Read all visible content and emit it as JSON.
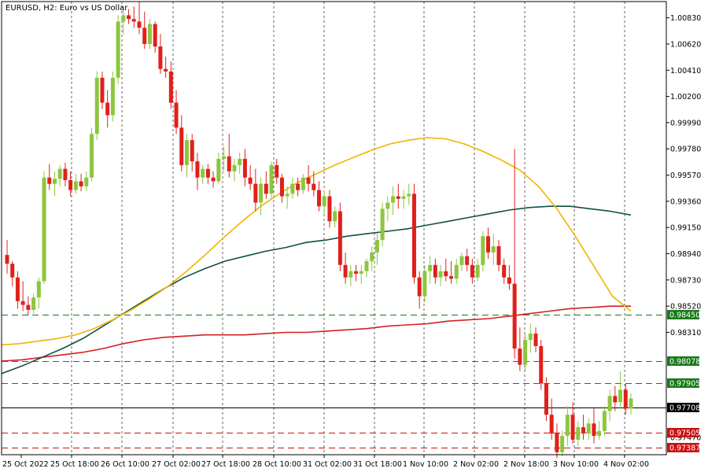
{
  "window": {
    "title": "EURUSD, H2:  Euro vs US Dollar"
  },
  "chart_data": {
    "type": "candlestick",
    "symbol": "EURUSD",
    "timeframe": "H2",
    "description": "Euro vs US Dollar",
    "ylim": [
      0.9733,
      1.0096
    ],
    "grid": "vertical dashed",
    "y_ticks": [
      "1.00830",
      "1.00620",
      "1.00410",
      "1.00200",
      "0.99990",
      "0.99780",
      "0.99570",
      "0.99360",
      "0.99150",
      "0.98940",
      "0.98730",
      "0.98520",
      "0.98310",
      "0.97470"
    ],
    "x_ticks": [
      "25 Oct 2022",
      "25 Oct 18:00",
      "26 Oct 10:00",
      "27 Oct 02:00",
      "27 Oct 18:00",
      "28 Oct 10:00",
      "31 Oct 02:00",
      "31 Oct 18:00",
      "1 Nov 10:00",
      "2 Nov 02:00",
      "2 Nov 18:00",
      "3 Nov 10:00",
      "4 Nov 02:00"
    ],
    "ohlc": [
      [
        0.9893,
        0.9905,
        0.9878,
        0.9886
      ],
      [
        0.9886,
        0.9888,
        0.9868,
        0.9875
      ],
      [
        0.9875,
        0.988,
        0.985,
        0.9856
      ],
      [
        0.9856,
        0.9872,
        0.9848,
        0.9853
      ],
      [
        0.9853,
        0.986,
        0.9845,
        0.9849
      ],
      [
        0.9849,
        0.9862,
        0.9846,
        0.9859
      ],
      [
        0.9859,
        0.9875,
        0.985,
        0.9872
      ],
      [
        0.9872,
        0.996,
        0.987,
        0.9955
      ],
      [
        0.9955,
        0.9966,
        0.9945,
        0.995
      ],
      [
        0.995,
        0.996,
        0.994,
        0.9954
      ],
      [
        0.9954,
        0.9965,
        0.9948,
        0.9962
      ],
      [
        0.9962,
        0.9967,
        0.9948,
        0.9953
      ],
      [
        0.9953,
        0.996,
        0.994,
        0.9945
      ],
      [
        0.9945,
        0.9958,
        0.9942,
        0.9952
      ],
      [
        0.9952,
        0.9958,
        0.9944,
        0.9948
      ],
      [
        0.9948,
        0.996,
        0.9944,
        0.9955
      ],
      [
        0.9955,
        0.9995,
        0.9952,
        0.999
      ],
      [
        0.999,
        1.004,
        0.9985,
        1.0035
      ],
      [
        1.0035,
        1.004,
        1.001,
        1.0015
      ],
      [
        1.0015,
        1.0025,
        0.9995,
        1.0005
      ],
      [
        1.0005,
        1.004,
        1.0,
        1.0035
      ],
      [
        1.0035,
        1.0085,
        1.003,
        1.008
      ],
      [
        1.008,
        1.009,
        1.007,
        1.0085
      ],
      [
        1.0085,
        1.009,
        1.0078,
        1.0082
      ],
      [
        1.0082,
        1.0092,
        1.0075,
        1.008
      ],
      [
        1.008,
        1.0096,
        1.007,
        1.0075
      ],
      [
        1.0075,
        1.0088,
        1.0058,
        1.0062
      ],
      [
        1.0062,
        1.0082,
        1.0058,
        1.0078
      ],
      [
        1.0078,
        1.008,
        1.0055,
        1.006
      ],
      [
        1.006,
        1.007,
        1.0038,
        1.0042
      ],
      [
        1.0042,
        1.0052,
        1.0035,
        1.004
      ],
      [
        1.004,
        1.0048,
        1.001,
        1.0015
      ],
      [
        1.0015,
        1.0025,
        0.999,
        0.9995
      ],
      [
        0.9995,
        1.0005,
        0.996,
        0.9965
      ],
      [
        0.9965,
        0.999,
        0.9955,
        0.9985
      ],
      [
        0.9985,
        0.999,
        0.996,
        0.9968
      ],
      [
        0.9968,
        0.9975,
        0.9945,
        0.9955
      ],
      [
        0.9955,
        0.9965,
        0.995,
        0.9962
      ],
      [
        0.9962,
        0.9966,
        0.995,
        0.9955
      ],
      [
        0.9955,
        0.996,
        0.9947,
        0.9952
      ],
      [
        0.9952,
        0.9975,
        0.995,
        0.997
      ],
      [
        0.997,
        0.998,
        0.996,
        0.9972
      ],
      [
        0.9972,
        0.999,
        0.9955,
        0.996
      ],
      [
        0.996,
        0.997,
        0.9952,
        0.9965
      ],
      [
        0.9965,
        0.9975,
        0.9958,
        0.997
      ],
      [
        0.997,
        0.9978,
        0.9948,
        0.9955
      ],
      [
        0.9955,
        0.9965,
        0.9945,
        0.995
      ],
      [
        0.995,
        0.9962,
        0.9928,
        0.9935
      ],
      [
        0.9935,
        0.9955,
        0.9925,
        0.995
      ],
      [
        0.995,
        0.996,
        0.9938,
        0.9942
      ],
      [
        0.9942,
        0.9968,
        0.9938,
        0.9965
      ],
      [
        0.9965,
        0.997,
        0.995,
        0.9955
      ],
      [
        0.9955,
        0.9958,
        0.9935,
        0.994
      ],
      [
        0.994,
        0.9948,
        0.993,
        0.9942
      ],
      [
        0.9942,
        0.9955,
        0.9938,
        0.995
      ],
      [
        0.995,
        0.9955,
        0.994,
        0.9945
      ],
      [
        0.9945,
        0.9958,
        0.9942,
        0.9955
      ],
      [
        0.9955,
        0.9965,
        0.9944,
        0.995
      ],
      [
        0.995,
        0.996,
        0.994,
        0.9945
      ],
      [
        0.9945,
        0.9952,
        0.9928,
        0.9932
      ],
      [
        0.9932,
        0.9945,
        0.9925,
        0.994
      ],
      [
        0.994,
        0.9945,
        0.9915,
        0.992
      ],
      [
        0.992,
        0.9932,
        0.9915,
        0.9928
      ],
      [
        0.9928,
        0.9935,
        0.988,
        0.9885
      ],
      [
        0.9885,
        0.9895,
        0.987,
        0.9875
      ],
      [
        0.9875,
        0.9885,
        0.9868,
        0.988
      ],
      [
        0.988,
        0.9885,
        0.9872,
        0.9878
      ],
      [
        0.9878,
        0.9885,
        0.987,
        0.988
      ],
      [
        0.988,
        0.989,
        0.9875,
        0.9888
      ],
      [
        0.9888,
        0.99,
        0.988,
        0.9895
      ],
      [
        0.9895,
        0.991,
        0.9885,
        0.9905
      ],
      [
        0.9905,
        0.9935,
        0.99,
        0.993
      ],
      [
        0.993,
        0.994,
        0.992,
        0.9935
      ],
      [
        0.9935,
        0.9948,
        0.9925,
        0.994
      ],
      [
        0.994,
        0.995,
        0.993,
        0.9938
      ],
      [
        0.9938,
        0.9945,
        0.993,
        0.994
      ],
      [
        0.994,
        0.995,
        0.9933,
        0.9942
      ],
      [
        0.9942,
        0.995,
        0.987,
        0.9875
      ],
      [
        0.9875,
        0.988,
        0.985,
        0.986
      ],
      [
        0.986,
        0.9885,
        0.9855,
        0.988
      ],
      [
        0.988,
        0.9892,
        0.987,
        0.9885
      ],
      [
        0.9885,
        0.989,
        0.987,
        0.9875
      ],
      [
        0.9875,
        0.9885,
        0.9868,
        0.988
      ],
      [
        0.988,
        0.989,
        0.9872,
        0.9876
      ],
      [
        0.9876,
        0.9888,
        0.987,
        0.9874
      ],
      [
        0.9874,
        0.989,
        0.987,
        0.9885
      ],
      [
        0.9885,
        0.9895,
        0.988,
        0.9892
      ],
      [
        0.9892,
        0.9898,
        0.988,
        0.9885
      ],
      [
        0.9885,
        0.989,
        0.987,
        0.9875
      ],
      [
        0.9875,
        0.989,
        0.9872,
        0.9885
      ],
      [
        0.9885,
        0.9912,
        0.988,
        0.9908
      ],
      [
        0.9908,
        0.9915,
        0.989,
        0.9895
      ],
      [
        0.9895,
        0.991,
        0.9885,
        0.99
      ],
      [
        0.99,
        0.9905,
        0.988,
        0.9885
      ],
      [
        0.9885,
        0.989,
        0.987,
        0.9875
      ],
      [
        0.9875,
        0.9885,
        0.9865,
        0.987
      ],
      [
        0.987,
        0.9978,
        0.981,
        0.9818
      ],
      [
        0.9818,
        0.9835,
        0.98,
        0.9805
      ],
      [
        0.9805,
        0.983,
        0.98,
        0.9825
      ],
      [
        0.9825,
        0.9838,
        0.9815,
        0.983
      ],
      [
        0.983,
        0.9835,
        0.9815,
        0.982
      ],
      [
        0.982,
        0.9825,
        0.9785,
        0.979
      ],
      [
        0.979,
        0.9795,
        0.976,
        0.9765
      ],
      [
        0.9765,
        0.9778,
        0.9745,
        0.975
      ],
      [
        0.975,
        0.9758,
        0.973,
        0.9735
      ],
      [
        0.9735,
        0.9752,
        0.9732,
        0.9748
      ],
      [
        0.9748,
        0.9772,
        0.974,
        0.9765
      ],
      [
        0.9765,
        0.9775,
        0.9742,
        0.9745
      ],
      [
        0.9745,
        0.976,
        0.974,
        0.9755
      ],
      [
        0.9755,
        0.9765,
        0.9745,
        0.975
      ],
      [
        0.975,
        0.9762,
        0.9745,
        0.9758
      ],
      [
        0.9758,
        0.977,
        0.9742,
        0.9748
      ],
      [
        0.9748,
        0.976,
        0.9745,
        0.9752
      ],
      [
        0.9752,
        0.9772,
        0.9748,
        0.9768
      ],
      [
        0.9768,
        0.9785,
        0.976,
        0.978
      ],
      [
        0.978,
        0.9788,
        0.9768,
        0.9775
      ],
      [
        0.9775,
        0.98,
        0.977,
        0.9785
      ],
      [
        0.9785,
        0.979,
        0.9765,
        0.977
      ],
      [
        0.977,
        0.9782,
        0.9765,
        0.9778
      ]
    ],
    "ma_fast": {
      "color": "#f0b400",
      "values": [
        0.9821,
        0.9822,
        0.9824,
        0.9826,
        0.9829,
        0.9834,
        0.9841,
        0.9849,
        0.9858,
        0.9868,
        0.988,
        0.9893,
        0.9907,
        0.992,
        0.9932,
        0.9942,
        0.9951,
        0.9958,
        0.9965,
        0.9971,
        0.9977,
        0.9982,
        0.9985,
        0.9987,
        0.9986,
        0.9982,
        0.9976,
        0.9969,
        0.9961,
        0.9948,
        0.993,
        0.9908,
        0.9884,
        0.986,
        0.9848
      ]
    },
    "ma_mid": {
      "color": "#0f5045",
      "values": [
        0.9798,
        0.9804,
        0.9811,
        0.9818,
        0.9826,
        0.9836,
        0.9846,
        0.9856,
        0.9866,
        0.9875,
        0.9882,
        0.9888,
        0.9892,
        0.9896,
        0.9899,
        0.9903,
        0.9905,
        0.9908,
        0.991,
        0.9912,
        0.9914,
        0.9917,
        0.992,
        0.9923,
        0.9926,
        0.9929,
        0.9931,
        0.9932,
        0.9932,
        0.993,
        0.9928,
        0.9925
      ]
    },
    "ma_slow": {
      "color": "#d42020",
      "values": [
        0.9808,
        0.9809,
        0.9811,
        0.9813,
        0.9815,
        0.9818,
        0.9822,
        0.9825,
        0.9827,
        0.9828,
        0.9829,
        0.9829,
        0.9829,
        0.983,
        0.9831,
        0.9831,
        0.9832,
        0.9833,
        0.9834,
        0.9836,
        0.9837,
        0.9838,
        0.984,
        0.9841,
        0.9842,
        0.9844,
        0.9846,
        0.9848,
        0.985,
        0.9851,
        0.9852,
        0.9852
      ]
    },
    "levels": [
      {
        "price": 0.9845,
        "label": "0.98450",
        "color": "#1a7a1a",
        "dash": true
      },
      {
        "price": 0.98078,
        "label": "0.98078",
        "color": "#1a7a1a",
        "dash": true
      },
      {
        "price": 0.97905,
        "label": "0.97905",
        "color": "#1a7a1a",
        "dash": true
      },
      {
        "price": 0.97708,
        "label": "0.97708",
        "color": "#000000",
        "dash": false
      },
      {
        "price": 0.97505,
        "label": "0.97505",
        "color": "#cc1111",
        "dash": true
      },
      {
        "price": 0.97387,
        "label": "0.97387",
        "color": "#cc1111",
        "dash": true
      }
    ],
    "colors": {
      "bull": "#8cc63e",
      "bear": "#e0201b",
      "grid": "#000000",
      "background": "#ffffff"
    }
  }
}
